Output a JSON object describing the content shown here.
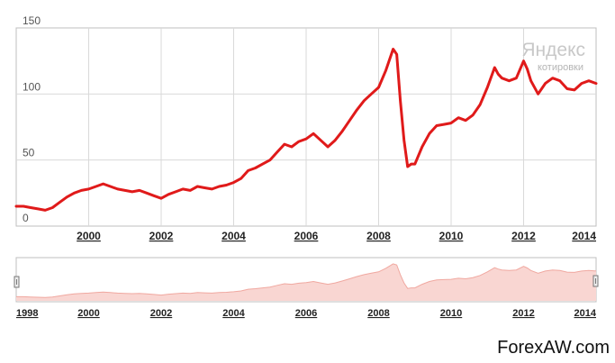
{
  "chart_data": {
    "type": "line",
    "title": "",
    "xlabel": "",
    "ylabel": "",
    "ylim": [
      0,
      150
    ],
    "xlim": [
      1998.0,
      2014.0
    ],
    "yticks": [
      "0",
      "50",
      "100",
      "150"
    ],
    "xticks": [
      "2000",
      "2002",
      "2004",
      "2006",
      "2008",
      "2010",
      "2012",
      "2014"
    ],
    "grid": true,
    "legend": "none",
    "line_color": "#e01a1a",
    "navigator": {
      "xticks": [
        "1998",
        "2000",
        "2002",
        "2004",
        "2006",
        "2008",
        "2010",
        "2012",
        "2014"
      ],
      "fill_color": "#f9d6d2",
      "line_color": "#f0a8a0"
    },
    "series": [
      {
        "x": [
          1998.0,
          1998.2,
          1998.4,
          1998.6,
          1998.8,
          1999.0,
          1999.2,
          1999.4,
          1999.6,
          1999.8,
          2000.0,
          2000.2,
          2000.4,
          2000.6,
          2000.8,
          2001.0,
          2001.2,
          2001.4,
          2001.6,
          2001.8,
          2002.0,
          2002.2,
          2002.4,
          2002.6,
          2002.8,
          2003.0,
          2003.2,
          2003.4,
          2003.6,
          2003.8,
          2004.0,
          2004.2,
          2004.4,
          2004.6,
          2004.8,
          2005.0,
          2005.2,
          2005.4,
          2005.6,
          2005.8,
          2006.0,
          2006.2,
          2006.4,
          2006.6,
          2006.8,
          2007.0,
          2007.2,
          2007.4,
          2007.6,
          2007.8,
          2008.0,
          2008.2,
          2008.4,
          2008.5,
          2008.6,
          2008.7,
          2008.8,
          2008.9,
          2009.0,
          2009.2,
          2009.4,
          2009.6,
          2009.8,
          2010.0,
          2010.2,
          2010.4,
          2010.6,
          2010.8,
          2011.0,
          2011.2,
          2011.3,
          2011.4,
          2011.6,
          2011.8,
          2012.0,
          2012.1,
          2012.2,
          2012.4,
          2012.6,
          2012.8,
          2013.0,
          2013.2,
          2013.4,
          2013.6,
          2013.8,
          2014.0
        ],
        "values": [
          15,
          15,
          14,
          13,
          12,
          14,
          18,
          22,
          25,
          27,
          28,
          30,
          32,
          30,
          28,
          27,
          26,
          27,
          25,
          23,
          21,
          24,
          26,
          28,
          27,
          30,
          29,
          28,
          30,
          31,
          33,
          36,
          42,
          44,
          47,
          50,
          56,
          62,
          60,
          64,
          66,
          70,
          65,
          60,
          65,
          72,
          80,
          88,
          95,
          100,
          105,
          118,
          134,
          130,
          95,
          65,
          45,
          47,
          47,
          60,
          70,
          76,
          77,
          78,
          82,
          80,
          84,
          92,
          105,
          120,
          115,
          112,
          110,
          112,
          125,
          119,
          110,
          100,
          108,
          112,
          110,
          104,
          103,
          108,
          110,
          108
        ]
      }
    ]
  },
  "watermark": {
    "brand": "Яндекс",
    "sub": "котировки"
  },
  "footer": {
    "site": "ForexAW.com"
  }
}
